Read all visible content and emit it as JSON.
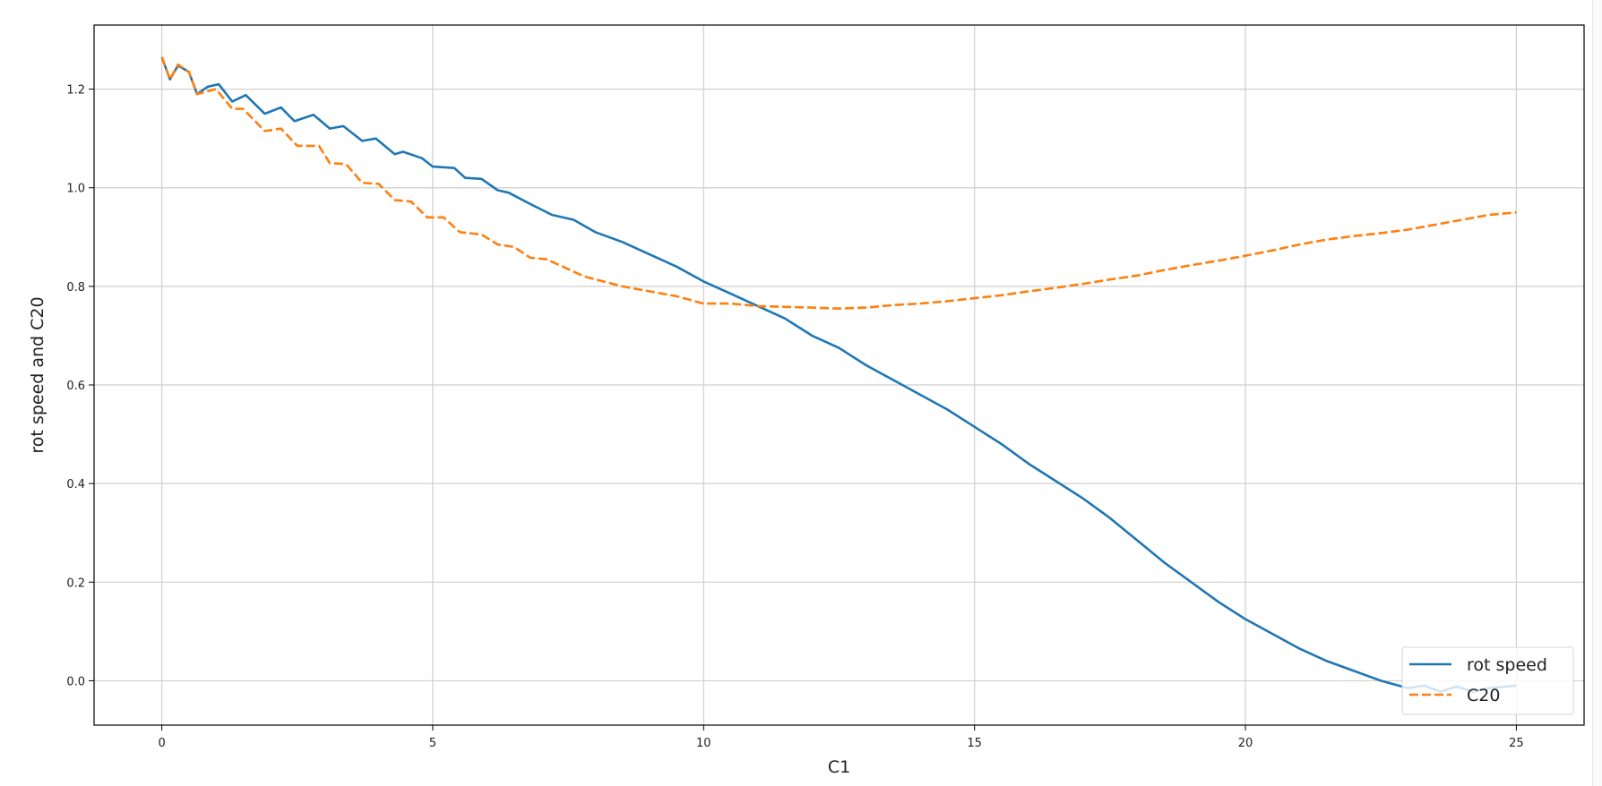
{
  "chart_data": {
    "type": "line",
    "title": "",
    "xlabel": "C1",
    "ylabel": "rot speed and C20",
    "xlim": [
      -1.25,
      26.25
    ],
    "ylim": [
      -0.09,
      1.33
    ],
    "xticks": [
      0,
      5,
      10,
      15,
      20,
      25
    ],
    "xtick_labels": [
      "0",
      "5",
      "10",
      "15",
      "20",
      "25"
    ],
    "yticks": [
      0.0,
      0.2,
      0.4,
      0.6,
      0.8,
      1.0,
      1.2
    ],
    "ytick_labels": [
      "0.0",
      "0.2",
      "0.4",
      "0.6",
      "0.8",
      "1.0",
      "1.2"
    ],
    "grid": true,
    "legend_position": "lower-right",
    "series": [
      {
        "name": "rot speed",
        "color": "#1f77b4",
        "style": "solid",
        "x": [
          0,
          0.15,
          0.3,
          0.5,
          0.65,
          0.85,
          1.05,
          1.3,
          1.55,
          1.9,
          2.2,
          2.45,
          2.8,
          3.1,
          3.35,
          3.7,
          3.95,
          4.3,
          4.45,
          4.8,
          5.0,
          5.4,
          5.6,
          5.9,
          6.2,
          6.4,
          6.8,
          7.2,
          7.6,
          8,
          8.5,
          9,
          9.5,
          10,
          10.5,
          11,
          11.5,
          12,
          12.5,
          13,
          13.5,
          14,
          14.5,
          15,
          15.5,
          16,
          16.5,
          17,
          17.5,
          18,
          18.5,
          19,
          19.5,
          20,
          20.5,
          21,
          21.5,
          22,
          22.5,
          23,
          23.3,
          23.6,
          23.9,
          24.2,
          24.5,
          25
        ],
        "y": [
          1.265,
          1.22,
          1.248,
          1.235,
          1.19,
          1.205,
          1.21,
          1.175,
          1.188,
          1.15,
          1.163,
          1.135,
          1.148,
          1.12,
          1.125,
          1.095,
          1.1,
          1.068,
          1.073,
          1.06,
          1.043,
          1.04,
          1.02,
          1.018,
          0.995,
          0.99,
          0.967,
          0.945,
          0.935,
          0.91,
          0.89,
          0.865,
          0.84,
          0.81,
          0.785,
          0.76,
          0.735,
          0.7,
          0.675,
          0.64,
          0.61,
          0.58,
          0.55,
          0.515,
          0.48,
          0.44,
          0.405,
          0.37,
          0.33,
          0.285,
          0.24,
          0.2,
          0.16,
          0.125,
          0.095,
          0.065,
          0.04,
          0.02,
          0.0,
          -0.015,
          -0.01,
          -0.022,
          -0.012,
          -0.022,
          -0.015,
          -0.01
        ]
      },
      {
        "name": "C20",
        "color": "#ff7f0e",
        "style": "dashed",
        "x": [
          0,
          0.15,
          0.3,
          0.5,
          0.65,
          1.0,
          1.3,
          1.5,
          1.9,
          2.2,
          2.5,
          2.9,
          3.1,
          3.4,
          3.7,
          4.0,
          4.3,
          4.6,
          4.9,
          5.2,
          5.5,
          5.9,
          6.2,
          6.5,
          6.8,
          7.1,
          7.4,
          7.8,
          8.5,
          9,
          9.5,
          10,
          10.5,
          11,
          12,
          12.5,
          13,
          13.5,
          14,
          14.5,
          15,
          15.5,
          16,
          16.5,
          17,
          17.5,
          18,
          18.5,
          19,
          19.5,
          20,
          20.5,
          21,
          21.5,
          22,
          22.5,
          23,
          23.5,
          24,
          24.5,
          25
        ],
        "y": [
          1.265,
          1.22,
          1.25,
          1.235,
          1.19,
          1.2,
          1.16,
          1.16,
          1.115,
          1.12,
          1.085,
          1.085,
          1.05,
          1.048,
          1.01,
          1.008,
          0.975,
          0.972,
          0.94,
          0.94,
          0.91,
          0.905,
          0.885,
          0.88,
          0.858,
          0.855,
          0.84,
          0.82,
          0.8,
          0.79,
          0.78,
          0.765,
          0.765,
          0.76,
          0.757,
          0.755,
          0.757,
          0.762,
          0.765,
          0.77,
          0.776,
          0.782,
          0.79,
          0.797,
          0.805,
          0.814,
          0.822,
          0.833,
          0.843,
          0.852,
          0.862,
          0.873,
          0.885,
          0.895,
          0.902,
          0.908,
          0.915,
          0.925,
          0.935,
          0.945,
          0.95
        ]
      }
    ]
  }
}
